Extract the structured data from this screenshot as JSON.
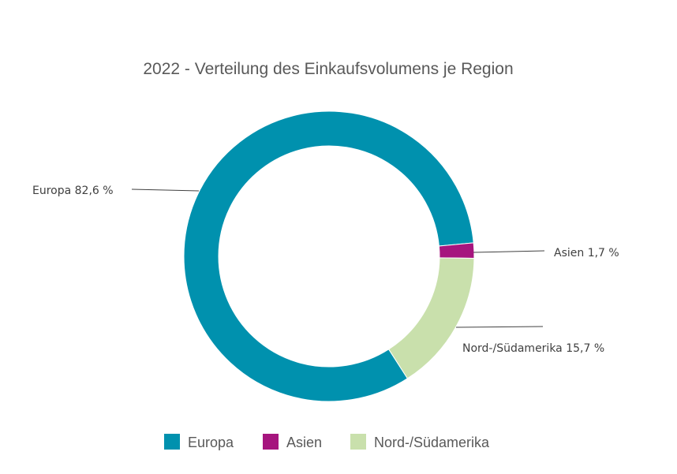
{
  "chart_data": {
    "type": "pie",
    "variant": "donut",
    "title": "2022 - Verteilung des Einkaufsvolumens je Region",
    "unit": "%",
    "categories": [
      "Europa",
      "Asien",
      "Nord-/Südamerika"
    ],
    "values": [
      82.6,
      1.7,
      15.7
    ],
    "data_labels": [
      "Europa 82,6 %",
      "Asien 1,7 %",
      "Nord-/Südamerika 15,7 %"
    ],
    "colors": [
      "#0091AE",
      "#A6157E",
      "#C9E0AC"
    ],
    "legend": {
      "placement": "bottom",
      "entries": [
        "Europa",
        "Asien",
        "Nord-/Südamerika"
      ]
    }
  }
}
